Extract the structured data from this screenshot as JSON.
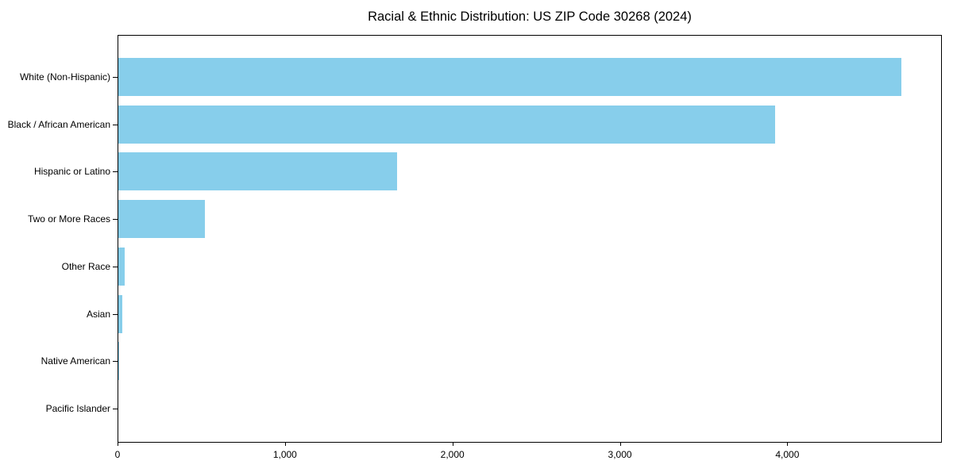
{
  "chart_data": {
    "type": "bar",
    "orientation": "horizontal",
    "title": "Racial & Ethnic Distribution: US ZIP Code 30268 (2024)",
    "categories": [
      "White (Non-Hispanic)",
      "Black / African American",
      "Hispanic or Latino",
      "Two or More Races",
      "Other Race",
      "Asian",
      "Native American",
      "Pacific Islander"
    ],
    "values": [
      4685,
      3930,
      1670,
      520,
      40,
      25,
      2,
      0
    ],
    "xlabel": "",
    "ylabel": "",
    "xlim": [
      0,
      4923
    ],
    "xticks": [
      0,
      1000,
      2000,
      3000,
      4000
    ],
    "xtick_labels": [
      "0",
      "1,000",
      "2,000",
      "3,000",
      "4,000"
    ],
    "grid": false,
    "legend_position": "none",
    "bar_color": "#87CEEB"
  },
  "colors": {
    "bar": "#87CEEB",
    "spine": "#000000",
    "text": "#000000",
    "background": "#FFFFFF"
  }
}
